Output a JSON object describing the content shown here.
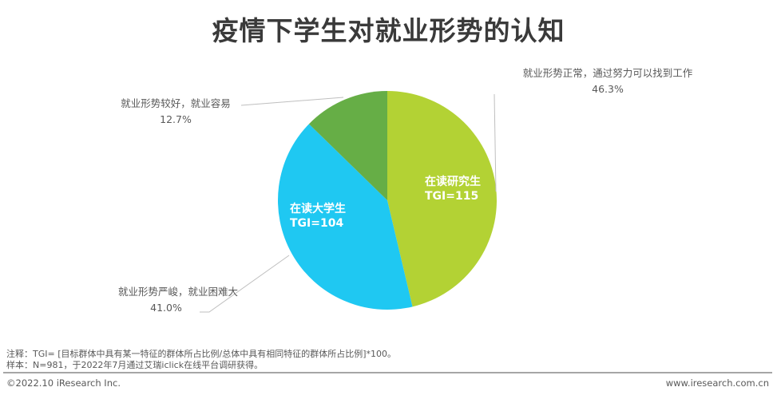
{
  "title": "疫情下学生对就业形势的认知",
  "chart_data": {
    "type": "pie",
    "title": "疫情下学生对就业形势的认知",
    "categories": [
      "就业形势正常，通过努力可以找到工作",
      "就业形势严峻，就业困难大",
      "就业形势较好，就业容易"
    ],
    "values": [
      46.3,
      41.0,
      12.7
    ],
    "unit": "%",
    "colors": [
      "#b3d234",
      "#1fc8f2",
      "#66ae46"
    ],
    "start_angle_deg": 0,
    "direction": "clockwise",
    "annotations": [
      {
        "slice": "就业形势正常，通过努力可以找到工作",
        "text": "在读研究生",
        "tgi": "TGI=115"
      },
      {
        "slice": "就业形势严峻，就业困难大",
        "text": "在读大学生",
        "tgi": "TGI=104"
      }
    ]
  },
  "labels": {
    "normal": {
      "text": "就业形势正常，通过努力可以找到工作",
      "pct": "46.3%"
    },
    "good": {
      "text": "就业形势较好，就业容易",
      "pct": "12.7%"
    },
    "severe": {
      "text": "就业形势严峻，就业困难大",
      "pct": "41.0%"
    }
  },
  "inner": {
    "grad": {
      "name": "在读研究生",
      "tgi": "TGI=115"
    },
    "undergrad": {
      "name": "在读大学生",
      "tgi": "TGI=104"
    }
  },
  "notes": {
    "line1": "注释：TGI= [目标群体中具有某一特征的群体所占比例/总体中具有相同特征的群体所占比例]*100。",
    "line2": "样本：N=981，于2022年7月通过艾瑞iclick在线平台调研获得。"
  },
  "footer": {
    "copyright": "©2022.10 iResearch Inc.",
    "website": "www.iresearch.com.cn"
  }
}
